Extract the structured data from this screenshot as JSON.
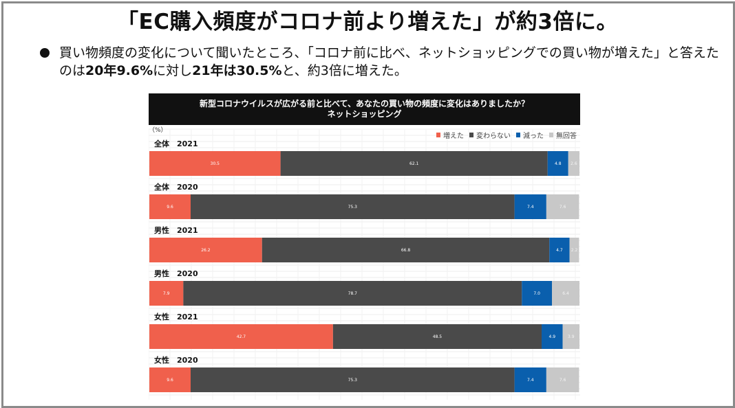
{
  "headline": "「EC購入頻度がコロナ前より増えた」が約3倍に。",
  "bullet": {
    "part1": "買い物頻度の変化について聞いたところ、「コロナ前に比べ、ネットショッピングでの買い物が増えた」と答えたのは",
    "bold1": "20年9.6%",
    "part2": "に対し",
    "bold2": "21年は30.5%",
    "part3": "と、約3倍に増えた。"
  },
  "chart_data": {
    "type": "bar",
    "orientation": "horizontal-stacked-100",
    "title_line1": "新型コロナウイルスが広がる前と比べて、あなたの買い物の頻度に変化はありましたか？",
    "title_line2": "ネットショッピング",
    "unit_label": "（%）",
    "legend_position": "top-right",
    "categories": [
      "全体　2021",
      "全体　2020",
      "男性　2021",
      "男性　2020",
      "女性　2021",
      "女性　2020"
    ],
    "series": [
      {
        "name": "増えた",
        "color": "#f0604c",
        "values": [
          30.5,
          9.6,
          26.2,
          7.9,
          42.7,
          9.6
        ]
      },
      {
        "name": "変わらない",
        "color": "#4a4a4a",
        "values": [
          62.1,
          75.3,
          66.8,
          78.7,
          48.5,
          75.3
        ]
      },
      {
        "name": "減った",
        "color": "#0a5fad",
        "values": [
          4.8,
          7.4,
          4.7,
          7.0,
          4.9,
          7.4
        ]
      },
      {
        "name": "無回答",
        "color": "#c8c8c8",
        "values": [
          2.6,
          7.6,
          2.2,
          6.4,
          3.9,
          7.6
        ]
      }
    ],
    "xlim": [
      0,
      100
    ]
  }
}
